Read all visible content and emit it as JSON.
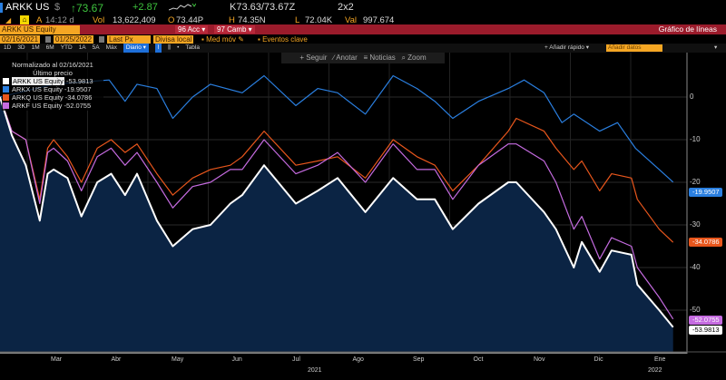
{
  "header": {
    "ticker": "ARKK US",
    "currency": "$",
    "last": "↑73.67",
    "change": "+2.87",
    "bid_ask": "K73.63/73.67Z",
    "size": "2x2",
    "time_label": "A",
    "time": "14:12 d",
    "vol_label": "Vol",
    "vol": "13,622,409",
    "open_label": "O",
    "open": "73.44P",
    "high_label": "H",
    "high": "74.35N",
    "low_label": "L",
    "low": "72.04K",
    "val_label": "Val",
    "val": "997.674"
  },
  "command": {
    "security": "ARKK US Equity",
    "acc": "96 Acc ▾",
    "camb": "97 Camb ▾",
    "title": "Gráfico de líneas"
  },
  "settings": {
    "start_date": "02/16/2021",
    "end_date": "01/25/2022",
    "field": "Last Px",
    "currency": "Divisa local",
    "moving_avg": "Med móv",
    "events": "Eventos clave"
  },
  "periods": [
    "1D",
    "3D",
    "1M",
    "6M",
    "YTD",
    "1A",
    "5A",
    "Máx"
  ],
  "frequency": "Diario ▾",
  "table_label": "Tabla",
  "quick_add": "+ Añadir rápido ▾",
  "add_data": "Añadir datos",
  "chart_toolbar": [
    "+ Seguir",
    "∕ Anotar",
    "≡ Noticias",
    "⌕ Zoom"
  ],
  "legend": {
    "title": "Normalizado al 02/16/2021",
    "subtitle": "Último precio"
  },
  "chart_data": {
    "type": "line",
    "x_unit": "days since 2021-02-16",
    "ylim": [
      -60,
      10
    ],
    "yticks": [
      "0",
      "-10",
      "-20",
      "-30",
      "-40",
      "-50"
    ],
    "ytick_values": [
      0,
      -10,
      -20,
      -30,
      -40,
      -50
    ],
    "xlabels": [
      "Mar",
      "Abr",
      "May",
      "Jun",
      "Jul",
      "Ago",
      "Sep",
      "Oct",
      "Nov",
      "Dic",
      "Ene"
    ],
    "year_labels": [
      "2021",
      "2022"
    ],
    "series": [
      {
        "name": "ARKK US Equity",
        "last": "-53.9813",
        "color": "#ffffff",
        "fill": true,
        "x": [
          0,
          6,
          13,
          20,
          24,
          27,
          34,
          41,
          49,
          56,
          63,
          69,
          79,
          87,
          97,
          106,
          116,
          122,
          133,
          149,
          160,
          170,
          184,
          198,
          210,
          219,
          228,
          241,
          256,
          260,
          274,
          280,
          289,
          293,
          302,
          308,
          318,
          321,
          332,
          339
        ],
        "y": [
          0,
          -9,
          -16,
          -29,
          -18,
          -17,
          -19,
          -28,
          -20,
          -18,
          -23,
          -18,
          -29,
          -35,
          -31,
          -30,
          -25,
          -23,
          -16,
          -25,
          -22,
          -19,
          -27,
          -19,
          -24,
          -24,
          -31,
          -25,
          -20,
          -20,
          -27,
          -31,
          -40,
          -34,
          -41,
          -36,
          -37,
          -44,
          -50,
          -53.98
        ]
      },
      {
        "name": "ARKX US Equity",
        "last": "-19.9507",
        "color": "#2a7fe0",
        "x": [
          0,
          27,
          55,
          63,
          69,
          79,
          87,
          97,
          106,
          122,
          133,
          149,
          160,
          170,
          184,
          198,
          210,
          219,
          228,
          241,
          256,
          264,
          274,
          283,
          289,
          302,
          311,
          320,
          332,
          339
        ],
        "y": [
          0,
          3,
          4,
          -1,
          3,
          2,
          -5,
          0,
          3,
          1,
          5,
          -2,
          2,
          1,
          -4,
          5,
          2,
          -1,
          -5,
          -1,
          2,
          4,
          1,
          -6,
          -4,
          -8,
          -6,
          -12,
          -17,
          -19.95
        ]
      },
      {
        "name": "ARKQ US Equity",
        "last": "-34.0786",
        "color": "#e8561c",
        "x": [
          0,
          6,
          13,
          20,
          24,
          27,
          34,
          41,
          49,
          56,
          63,
          69,
          79,
          87,
          97,
          106,
          116,
          122,
          133,
          149,
          160,
          170,
          184,
          198,
          210,
          219,
          228,
          241,
          256,
          260,
          274,
          280,
          289,
          293,
          302,
          308,
          318,
          321,
          332,
          339
        ],
        "y": [
          0,
          -8,
          -10,
          -24,
          -12,
          -10,
          -14,
          -20,
          -12,
          -10,
          -13,
          -11,
          -18,
          -23,
          -19,
          -17,
          -16,
          -14,
          -8,
          -16,
          -15,
          -14,
          -19,
          -10,
          -14,
          -16,
          -22,
          -16,
          -8,
          -5,
          -8,
          -12,
          -17,
          -15,
          -22,
          -18,
          -19,
          -24,
          -31,
          -34.08
        ]
      },
      {
        "name": "ARKF US Equity",
        "last": "-52.0755",
        "color": "#c56be0",
        "x": [
          0,
          6,
          13,
          20,
          24,
          27,
          34,
          41,
          49,
          56,
          63,
          69,
          79,
          87,
          97,
          106,
          116,
          122,
          133,
          149,
          160,
          170,
          184,
          198,
          210,
          219,
          228,
          241,
          256,
          260,
          274,
          280,
          289,
          293,
          302,
          308,
          318,
          321,
          332,
          339
        ],
        "y": [
          0,
          -8,
          -10,
          -25,
          -13,
          -12,
          -15,
          -22,
          -14,
          -12,
          -16,
          -13,
          -20,
          -26,
          -21,
          -20,
          -17,
          -17,
          -10,
          -18,
          -16,
          -13,
          -20,
          -11,
          -17,
          -17,
          -24,
          -16,
          -11,
          -11,
          -15,
          -20,
          -31,
          -28,
          -38,
          -33,
          -35,
          -40,
          -47,
          -52.08
        ]
      }
    ]
  }
}
